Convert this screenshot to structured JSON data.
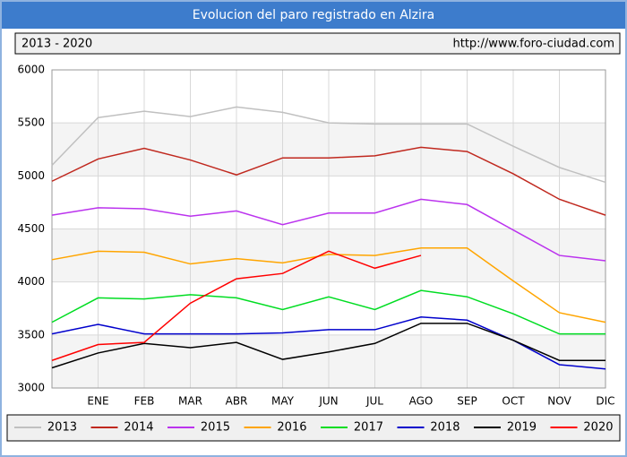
{
  "chart_data": {
    "type": "line",
    "title": "Evolucion del paro registrado en Alzira",
    "subtitle": "2013 - 2020",
    "source": "http://www.foro-ciudad.com",
    "categories": [
      null,
      "ENE",
      "FEB",
      "MAR",
      "ABR",
      "MAY",
      "JUN",
      "JUL",
      "AGO",
      "SEP",
      "OCT",
      "NOV",
      "DIC"
    ],
    "series": [
      {
        "name": "2013",
        "color": "#c0c0c0",
        "values": [
          5100,
          5550,
          5610,
          5560,
          5650,
          5600,
          5500,
          5490,
          5490,
          5490,
          5280,
          5080,
          4940
        ]
      },
      {
        "name": "2014",
        "color": "#c0281e",
        "values": [
          4950,
          5160,
          5260,
          5150,
          5010,
          5170,
          5170,
          5190,
          5270,
          5230,
          5020,
          4780,
          4630
        ]
      },
      {
        "name": "2015",
        "color": "#bb33ee",
        "values": [
          4630,
          4700,
          4690,
          4620,
          4670,
          4540,
          4650,
          4650,
          4780,
          4730,
          4490,
          4250,
          4200
        ]
      },
      {
        "name": "2016",
        "color": "#ffa500",
        "values": [
          4210,
          4290,
          4280,
          4170,
          4220,
          4180,
          4260,
          4250,
          4320,
          4320,
          4010,
          3710,
          3620
        ]
      },
      {
        "name": "2017",
        "color": "#00dd22",
        "values": [
          3620,
          3850,
          3840,
          3880,
          3850,
          3740,
          3860,
          3740,
          3920,
          3860,
          3700,
          3510,
          3510
        ]
      },
      {
        "name": "2018",
        "color": "#0000cc",
        "values": [
          3510,
          3600,
          3510,
          3510,
          3510,
          3520,
          3550,
          3550,
          3670,
          3640,
          3450,
          3220,
          3180
        ]
      },
      {
        "name": "2019",
        "color": "#000000",
        "values": [
          3190,
          3330,
          3420,
          3380,
          3430,
          3270,
          3340,
          3420,
          3610,
          3610,
          3450,
          3260,
          3260
        ]
      },
      {
        "name": "2020",
        "color": "#ff0000",
        "values": [
          3260,
          3410,
          3430,
          3800,
          4030,
          4080,
          4290,
          4130,
          4250,
          null,
          null,
          null,
          null
        ]
      }
    ],
    "ylim": [
      3000,
      6000
    ],
    "yticks": [
      3000,
      3500,
      4000,
      4500,
      5000,
      5500,
      6000
    ],
    "grid": true
  }
}
